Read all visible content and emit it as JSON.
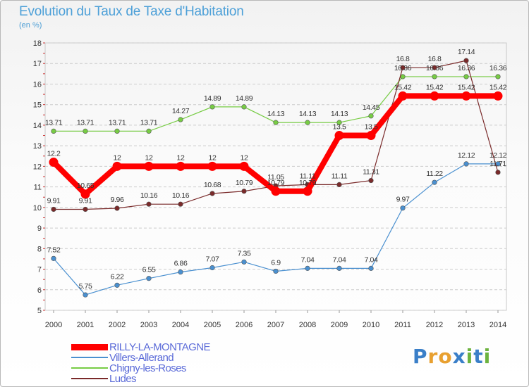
{
  "title": "Evolution du Taux de Taxe d'Habitation",
  "subtitle": "(en %)",
  "logo": {
    "text": "Proxiti",
    "colors": [
      "#3a7fc8",
      "#e8a030",
      "#e8a030",
      "#3a7fc8",
      "#6db33f",
      "#3a7fc8",
      "#6db33f"
    ]
  },
  "chart_data": {
    "type": "line",
    "title": "Evolution du Taux de Taxe d'Habitation",
    "ylabel": "(en %)",
    "xlabel": "",
    "x": [
      "2000",
      "2001",
      "2002",
      "2003",
      "2004",
      "2005",
      "2006",
      "2007",
      "2008",
      "2009",
      "2010",
      "2011",
      "2012",
      "2013",
      "2014"
    ],
    "ylim": [
      5,
      18
    ],
    "yticks": [
      5,
      6,
      7,
      8,
      9,
      10,
      11,
      12,
      13,
      14,
      15,
      16,
      17,
      18
    ],
    "grid": "horizontal-dashed",
    "series": [
      {
        "name": "RILLY-LA-MONTAGNE",
        "color": "#ff0000",
        "emphasis": true,
        "values": [
          12.2,
          10.65,
          12,
          12,
          12,
          12,
          12,
          10.79,
          10.79,
          13.5,
          13.5,
          15.42,
          15.42,
          15.42,
          15.42
        ],
        "labels": [
          "12.2",
          "10.65",
          "12",
          "12",
          "12",
          "12",
          "12",
          "10.79",
          "10.79",
          "13.5",
          "13.5",
          "15.42",
          "15.42",
          "15.42",
          "15.42"
        ]
      },
      {
        "name": "Villers-Allerand",
        "color": "#4a90d0",
        "values": [
          7.52,
          5.75,
          6.22,
          6.55,
          6.86,
          7.07,
          7.35,
          6.9,
          7.04,
          7.04,
          7.04,
          9.97,
          11.22,
          12.12,
          12.12
        ],
        "labels": [
          "7.52",
          "5.75",
          "6.22",
          "6.55",
          "6.86",
          "7.07",
          "7.35",
          "6.9",
          "7.04",
          "7.04",
          "7.04",
          "9.97",
          "11.22",
          "12.12",
          "12.12"
        ]
      },
      {
        "name": "Chigny-les-Roses",
        "color": "#77cc44",
        "values": [
          13.71,
          13.71,
          13.71,
          13.71,
          14.27,
          14.89,
          14.89,
          14.13,
          14.13,
          14.13,
          14.45,
          16.36,
          16.36,
          16.36,
          16.36
        ],
        "labels": [
          "13.71",
          "13.71",
          "13.71",
          "13.71",
          "14.27",
          "14.89",
          "14.89",
          "14.13",
          "14.13",
          "14.13",
          "14.45",
          "16.36",
          "16.36",
          "16.36",
          "16.36"
        ]
      },
      {
        "name": "Ludes",
        "color": "#7a2a2a",
        "values": [
          9.91,
          9.91,
          9.96,
          10.16,
          10.16,
          10.68,
          10.79,
          11.05,
          11.11,
          11.11,
          11.31,
          16.8,
          16.8,
          17.14,
          11.71
        ],
        "labels": [
          "9.91",
          "9.91",
          "9.96",
          "10.16",
          "10.16",
          "10.68",
          "10.79",
          "11.05",
          "11.11",
          "11.11",
          "11.31",
          "16.8",
          "16.8",
          "17.14",
          "11.71"
        ]
      }
    ],
    "legend": "bottom-left"
  }
}
